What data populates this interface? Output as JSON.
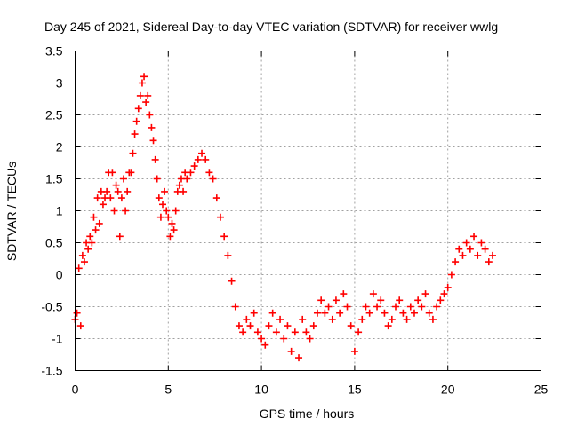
{
  "chart_data": {
    "type": "scatter",
    "title": "Day 245 of 2021, Sidereal Day-to-day VTEC variation (SDTVAR) for receiver wwlg",
    "xlabel": "GPS time / hours",
    "ylabel": "SDTVAR / TECUs",
    "xlim": [
      0,
      25
    ],
    "ylim": [
      -1.5,
      3.5
    ],
    "xticks": [
      0,
      5,
      10,
      15,
      20,
      25
    ],
    "yticks": [
      -1.5,
      -1,
      -0.5,
      0,
      0.5,
      1,
      1.5,
      2,
      2.5,
      3,
      3.5
    ],
    "xtick_labels": [
      "0",
      "5",
      "10",
      "15",
      "20",
      "25"
    ],
    "ytick_labels": [
      "-1.5",
      "-1",
      "-0.5",
      "0",
      "0.5",
      "1",
      "1.5",
      "2",
      "2.5",
      "3",
      "3.5"
    ],
    "grid": true,
    "marker": "+",
    "series": [
      {
        "name": "SDTVAR",
        "color": "#ff0000",
        "x": [
          0.0,
          0.1,
          0.2,
          0.3,
          0.4,
          0.5,
          0.6,
          0.7,
          0.8,
          0.9,
          1.0,
          1.1,
          1.2,
          1.3,
          1.4,
          1.5,
          1.6,
          1.7,
          1.8,
          1.9,
          2.0,
          2.1,
          2.2,
          2.3,
          2.4,
          2.5,
          2.6,
          2.7,
          2.8,
          2.9,
          3.0,
          3.1,
          3.2,
          3.3,
          3.4,
          3.5,
          3.6,
          3.7,
          3.8,
          3.9,
          4.0,
          4.1,
          4.2,
          4.3,
          4.4,
          4.5,
          4.6,
          4.7,
          4.8,
          4.9,
          5.0,
          5.1,
          5.2,
          5.3,
          5.4,
          5.5,
          5.6,
          5.7,
          5.8,
          5.9,
          6.0,
          6.2,
          6.4,
          6.6,
          6.8,
          7.0,
          7.2,
          7.4,
          7.6,
          7.8,
          8.0,
          8.2,
          8.4,
          8.6,
          8.8,
          9.0,
          9.2,
          9.4,
          9.6,
          9.8,
          10.0,
          10.2,
          10.4,
          10.6,
          10.8,
          11.0,
          11.2,
          11.4,
          11.6,
          11.8,
          12.0,
          12.2,
          12.4,
          12.6,
          12.8,
          13.0,
          13.2,
          13.4,
          13.6,
          13.8,
          14.0,
          14.2,
          14.4,
          14.6,
          14.8,
          15.0,
          15.2,
          15.4,
          15.6,
          15.8,
          16.0,
          16.2,
          16.4,
          16.6,
          16.8,
          17.0,
          17.2,
          17.4,
          17.6,
          17.8,
          18.0,
          18.2,
          18.4,
          18.6,
          18.8,
          19.0,
          19.2,
          19.4,
          19.6,
          19.8,
          20.0,
          20.2,
          20.4,
          20.6,
          20.8,
          21.0,
          21.2,
          21.4,
          21.6,
          21.8,
          22.0,
          22.2,
          22.4
        ],
        "y": [
          -0.7,
          -0.6,
          0.1,
          -0.8,
          0.3,
          0.2,
          0.5,
          0.4,
          0.6,
          0.5,
          0.9,
          0.7,
          1.2,
          0.8,
          1.3,
          1.1,
          1.2,
          1.3,
          1.6,
          1.2,
          1.6,
          1.0,
          1.4,
          1.3,
          0.6,
          1.2,
          1.5,
          1.0,
          1.3,
          1.6,
          1.6,
          1.9,
          2.2,
          2.4,
          2.6,
          2.8,
          3.0,
          3.1,
          2.7,
          2.8,
          2.5,
          2.3,
          2.1,
          1.8,
          1.5,
          1.2,
          0.9,
          1.1,
          1.3,
          1.0,
          0.9,
          0.6,
          0.8,
          0.7,
          1.0,
          1.3,
          1.4,
          1.5,
          1.3,
          1.6,
          1.5,
          1.6,
          1.7,
          1.8,
          1.9,
          1.8,
          1.6,
          1.5,
          1.2,
          0.9,
          0.6,
          0.3,
          -0.1,
          -0.5,
          -0.8,
          -0.9,
          -0.7,
          -0.8,
          -0.6,
          -0.9,
          -1.0,
          -1.1,
          -0.8,
          -0.6,
          -0.9,
          -0.7,
          -1.0,
          -0.8,
          -1.2,
          -0.9,
          -1.3,
          -0.7,
          -0.9,
          -1.0,
          -0.8,
          -0.6,
          -0.4,
          -0.6,
          -0.5,
          -0.7,
          -0.4,
          -0.6,
          -0.3,
          -0.5,
          -0.8,
          -1.2,
          -0.9,
          -0.7,
          -0.5,
          -0.6,
          -0.3,
          -0.5,
          -0.4,
          -0.6,
          -0.8,
          -0.7,
          -0.5,
          -0.4,
          -0.6,
          -0.7,
          -0.5,
          -0.6,
          -0.4,
          -0.5,
          -0.3,
          -0.6,
          -0.7,
          -0.5,
          -0.4,
          -0.3,
          -0.2,
          0.0,
          0.2,
          0.4,
          0.3,
          0.5,
          0.4,
          0.6,
          0.3,
          0.5,
          0.4,
          0.2,
          0.3
        ]
      }
    ]
  }
}
